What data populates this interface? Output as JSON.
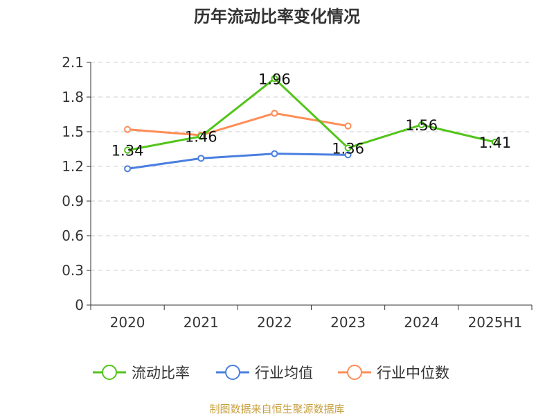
{
  "chart_data": {
    "type": "line",
    "title": "历年流动比率变化情况",
    "categories": [
      "2020",
      "2021",
      "2022",
      "2023",
      "2024",
      "2025H1"
    ],
    "ylim": [
      0,
      2.1
    ],
    "yticks": [
      "0",
      "0.3",
      "0.6",
      "0.9",
      "1.2",
      "1.5",
      "1.8",
      "2.1"
    ],
    "grid": true,
    "legend_position": "bottom",
    "series": [
      {
        "name": "流动比率",
        "color": "#52c41a",
        "values": [
          1.34,
          1.46,
          1.96,
          1.36,
          1.56,
          1.41
        ],
        "labels": [
          "1.34",
          "1.46",
          "1.96",
          "1.36",
          "1.56",
          "1.41"
        ]
      },
      {
        "name": "行业均值",
        "color": "#4a7fe0",
        "values": [
          1.18,
          1.27,
          1.31,
          1.3,
          null,
          null
        ]
      },
      {
        "name": "行业中位数",
        "color": "#ff8c55",
        "values": [
          1.52,
          1.47,
          1.66,
          1.55,
          null,
          null
        ]
      }
    ]
  },
  "footer": "制图数据来自恒生聚源数据库"
}
